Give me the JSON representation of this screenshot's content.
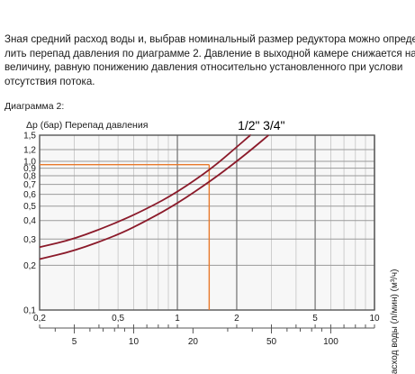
{
  "paragraph": [
    "Зная средний расход воды и, выбрав номинальный размер редуктора можно опреде-",
    "лить перепад давления по диаграмме 2. Давление в выходной камере снижается на",
    "величину, равную понижению давления относительно установленного при услови",
    "отсутствия потока."
  ],
  "diagram_label": "Диаграмма 2:",
  "chart_data": {
    "type": "line",
    "title": "",
    "ylabel": "Δp (бар)  Перепад давления",
    "xlabel": "Расход воды (л/мин) (м³/ч)",
    "x_scale": "log",
    "y_scale": "log",
    "xlim": [
      0.2,
      10
    ],
    "ylim": [
      0.1,
      1.5
    ],
    "grid": true,
    "x_ticks_m3h": [
      "0,2",
      "0,5",
      "1",
      "2",
      "5",
      "10"
    ],
    "x_tick_values_m3h": [
      0.2,
      0.5,
      1,
      2,
      5,
      10
    ],
    "x_ticks_lmin": [
      "5",
      "10",
      "20",
      "50",
      "100"
    ],
    "x_tick_values_lmin": [
      5,
      10,
      20,
      50,
      100
    ],
    "y_ticks": [
      "0,1",
      "0,2",
      "0,3",
      "0,4",
      "0,5",
      "0,6",
      "0,7",
      "0,8",
      "0,9",
      "1,0",
      "1,2",
      "1,5"
    ],
    "y_tick_values": [
      0.1,
      0.2,
      0.3,
      0.4,
      0.5,
      0.6,
      0.7,
      0.8,
      0.9,
      1.0,
      1.2,
      1.5
    ],
    "series": [
      {
        "name": "1/2\"",
        "color": "#8b1a2a",
        "x": [
          0.2,
          0.3,
          0.5,
          0.7,
          1.0,
          1.5,
          2.0,
          2.35
        ],
        "y": [
          0.265,
          0.3,
          0.39,
          0.48,
          0.62,
          0.9,
          1.25,
          1.5
        ]
      },
      {
        "name": "3/4\"",
        "color": "#8b1a2a",
        "x": [
          0.2,
          0.3,
          0.5,
          0.7,
          1.0,
          1.5,
          2.0,
          2.5,
          2.9
        ],
        "y": [
          0.22,
          0.25,
          0.32,
          0.4,
          0.52,
          0.75,
          1.0,
          1.27,
          1.5
        ]
      }
    ],
    "reference": {
      "color": "#e8792b",
      "x_m3h": 1.45,
      "y_bar": 0.95
    }
  }
}
